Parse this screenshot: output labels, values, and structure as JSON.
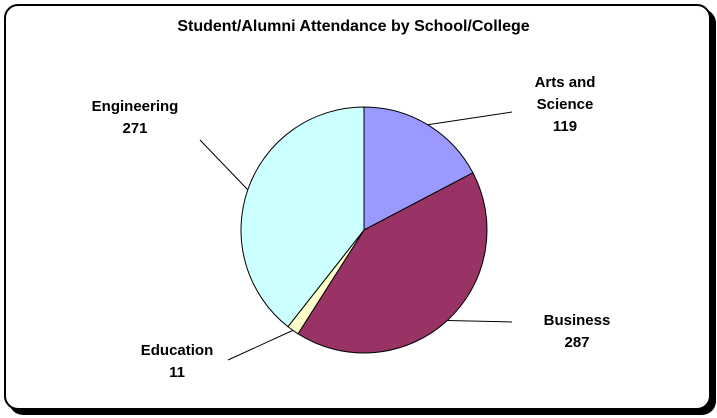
{
  "chart_data": {
    "type": "pie",
    "title": "Student/Alumni Attendance by School/College",
    "slices": [
      {
        "label": "Arts and Science",
        "value": 119,
        "color": "#9999ff"
      },
      {
        "label": "Business",
        "value": 287,
        "color": "#993366"
      },
      {
        "label": "Education",
        "value": 11,
        "color": "#ffffcc"
      },
      {
        "label": "Engineering",
        "value": 271,
        "color": "#ccffff"
      }
    ],
    "legend": "none",
    "data_labels": "category name and value"
  }
}
